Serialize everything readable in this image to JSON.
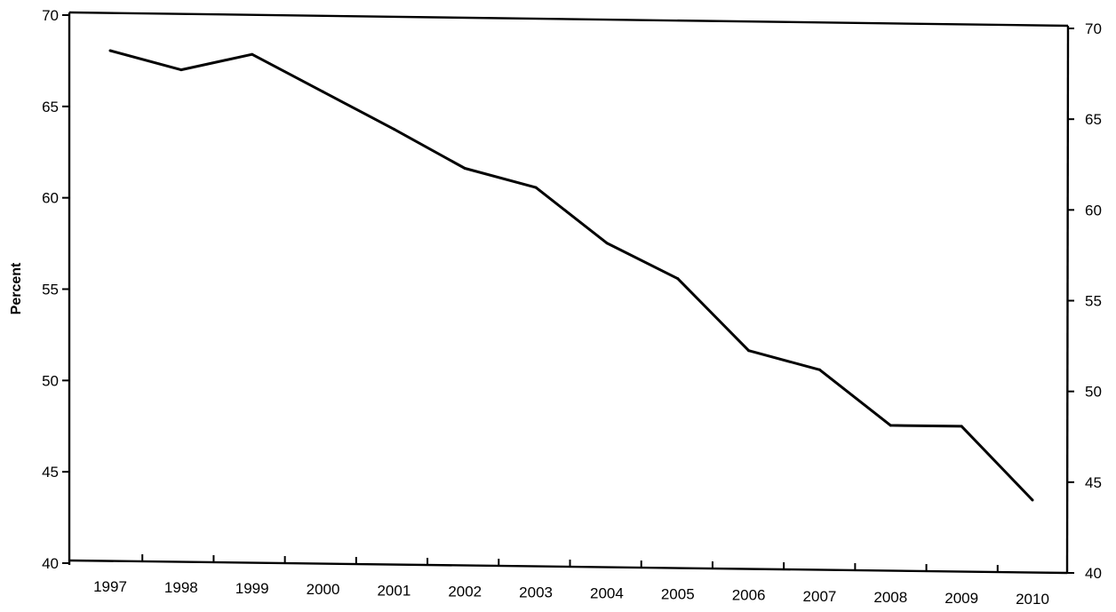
{
  "chart_data": {
    "type": "line",
    "title": "",
    "xlabel": "",
    "ylabel": "Percent",
    "ylim": [
      40,
      70
    ],
    "yticks": [
      "40",
      "45",
      "50",
      "55",
      "60",
      "65",
      "70"
    ],
    "right_yticks": [
      "40",
      "45",
      "50",
      "55",
      "60",
      "65",
      "70"
    ],
    "grid": false,
    "categories": [
      "1997",
      "1998",
      "1999",
      "2000",
      "2001",
      "2002",
      "2003",
      "2004",
      "2005",
      "2006",
      "2007",
      "2008",
      "2009",
      "2010"
    ],
    "series": [
      {
        "values": [
          68.0,
          67.0,
          67.9,
          65.9,
          63.9,
          61.8,
          60.8,
          57.8,
          55.9,
          52.0,
          51.0,
          48.0,
          48.0,
          44.0
        ]
      }
    ]
  }
}
